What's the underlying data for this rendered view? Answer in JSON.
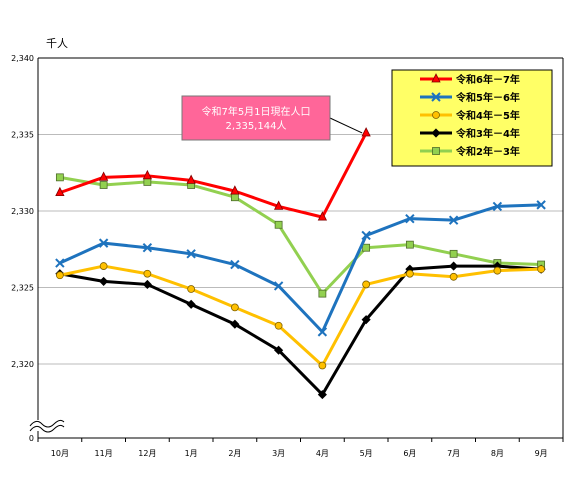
{
  "chart_data": {
    "type": "line",
    "unit_label": "千人",
    "categories": [
      "10月",
      "11月",
      "12月",
      "1月",
      "2月",
      "3月",
      "4月",
      "5月",
      "6月",
      "7月",
      "8月",
      "9月"
    ],
    "y_ticks": [
      "2,340",
      "2,335",
      "2,330",
      "2,325",
      "2,320"
    ],
    "y_zero_label": "0",
    "ylim": [
      2315,
      2340
    ],
    "axis_break": true,
    "grid": "horizontal",
    "legend_position": "top-right",
    "series": [
      {
        "name": "令和6年－7年",
        "color": "#ff0000",
        "marker": "triangle",
        "values": [
          2331.2,
          2332.2,
          2332.3,
          2332.0,
          2331.3,
          2330.3,
          2329.6,
          2335.1,
          null,
          null,
          null,
          null
        ]
      },
      {
        "name": "令和5年－6年",
        "color": "#1e73be",
        "marker": "x",
        "values": [
          2326.6,
          2327.9,
          2327.6,
          2327.2,
          2326.5,
          2325.1,
          2322.1,
          2328.4,
          2329.5,
          2329.4,
          2330.3,
          2330.4
        ]
      },
      {
        "name": "令和4年－5年",
        "color": "#ffc000",
        "marker": "circle",
        "values": [
          2325.8,
          2326.4,
          2325.9,
          2324.9,
          2323.7,
          2322.5,
          2319.9,
          2325.2,
          2325.9,
          2325.7,
          2326.1,
          2326.2
        ]
      },
      {
        "name": "令和3年－4年",
        "color": "#000000",
        "marker": "diamond",
        "values": [
          2325.9,
          2325.4,
          2325.2,
          2323.9,
          2322.6,
          2320.9,
          2318.0,
          2322.9,
          2326.2,
          2326.4,
          2326.4,
          2326.2
        ]
      },
      {
        "name": "令和2年－3年",
        "color": "#92d050",
        "marker": "square",
        "values": [
          2332.2,
          2331.7,
          2331.9,
          2331.7,
          2330.9,
          2329.1,
          2324.6,
          2327.6,
          2327.8,
          2327.2,
          2326.6,
          2326.5
        ]
      }
    ],
    "annotation": {
      "line1": "令和7年5月1日現在人口",
      "line2": "2,335,144人",
      "category": "5月",
      "series": "令和6年－7年"
    }
  }
}
